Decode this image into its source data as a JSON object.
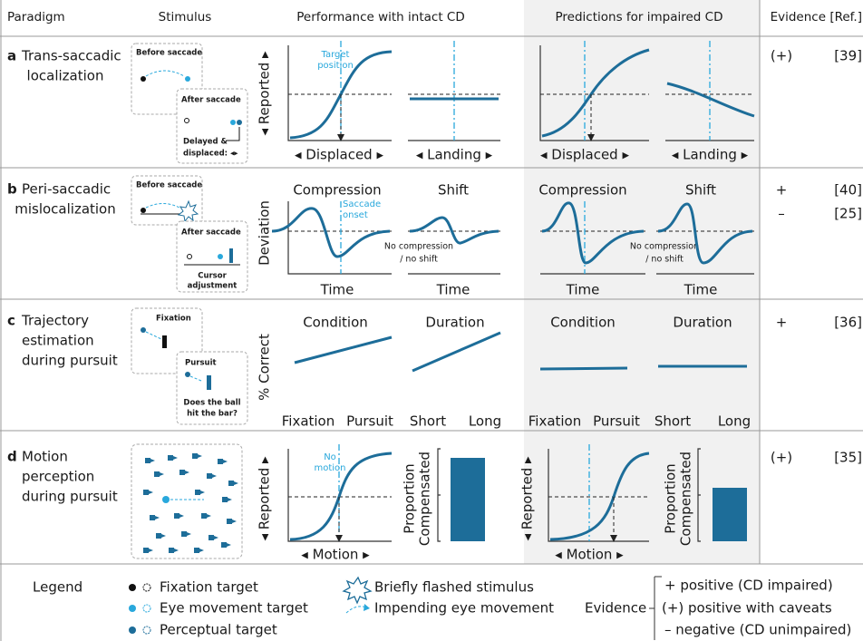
{
  "header": {
    "columns": [
      "Paradigm",
      "Stimulus",
      "Performance with intact CD",
      "Predictions for impaired CD",
      "Evidence [Ref.]"
    ]
  },
  "rows": [
    {
      "letter": "a",
      "paradigm": [
        "Trans-saccadic",
        "localization"
      ],
      "stimulus": [
        "Before saccade",
        "After saccade",
        "Delayed &",
        "displaced: ◂▸"
      ],
      "intact": {
        "y_label": "◂ Reported ▸",
        "annotation": [
          "Target",
          "position"
        ],
        "x_labels": [
          "◂ Displaced ▸",
          "◂ Landing ▸"
        ]
      },
      "impaired": {
        "x_labels": [
          "◂ Displaced ▸",
          "◂ Landing ▸"
        ]
      },
      "evidence": [
        "(+)"
      ],
      "refs": [
        "[39]"
      ]
    },
    {
      "letter": "b",
      "paradigm": [
        "Peri-saccadic",
        "mislocalization"
      ],
      "stimulus": [
        "Before saccade",
        "After saccade",
        "Cursor",
        "adjustment"
      ],
      "intact": {
        "y_label": "Deviation",
        "titles": [
          "Compression",
          "Shift"
        ],
        "annotation": [
          "Saccade",
          "onset"
        ],
        "note": [
          "No compression",
          "/ no shift"
        ],
        "x_labels": [
          "Time",
          "Time"
        ]
      },
      "impaired": {
        "titles": [
          "Compression",
          "Shift"
        ],
        "note": [
          "No compression",
          "/ no shift"
        ],
        "x_labels": [
          "Time",
          "Time"
        ]
      },
      "evidence": [
        "+",
        "–"
      ],
      "refs": [
        "[40]",
        "[25]"
      ]
    },
    {
      "letter": "c",
      "paradigm": [
        "Trajectory",
        "estimation",
        "during pursuit"
      ],
      "stimulus": [
        "Fixation",
        "Pursuit",
        "Does the ball",
        "hit the bar?"
      ],
      "intact": {
        "y_label": "% Correct",
        "titles": [
          "Condition",
          "Duration"
        ],
        "x_labels": [
          "Fixation",
          "Pursuit",
          "Short",
          "Long"
        ]
      },
      "impaired": {
        "titles": [
          "Condition",
          "Duration"
        ],
        "x_labels": [
          "Fixation",
          "Pursuit",
          "Short",
          "Long"
        ]
      },
      "evidence": [
        "+"
      ],
      "refs": [
        "[36]"
      ]
    },
    {
      "letter": "d",
      "paradigm": [
        "Motion",
        "perception",
        "during pursuit"
      ],
      "intact": {
        "y_label": "◂ Reported ▸",
        "annotation": [
          "No",
          "motion"
        ],
        "x_label": "◂ Motion ▸",
        "bar_label": [
          "Proportion",
          "Compensated"
        ]
      },
      "impaired": {
        "y_label": "◂ Reported ▸",
        "x_label": "◂ Motion ▸",
        "bar_label": [
          "Proportion",
          "Compensated"
        ]
      },
      "evidence": [
        "(+)"
      ],
      "refs": [
        "[35]"
      ]
    }
  ],
  "legend": {
    "title": "Legend",
    "items": [
      "Fixation target",
      "Eye movement target",
      "Perceptual target",
      "Briefly flashed stimulus",
      "Impending eye movement"
    ],
    "evidence_title": "Evidence",
    "evidence_items": [
      "+ positive (CD impaired)",
      "(+) positive with caveats",
      "– negative (CD unimpaired)"
    ]
  }
}
